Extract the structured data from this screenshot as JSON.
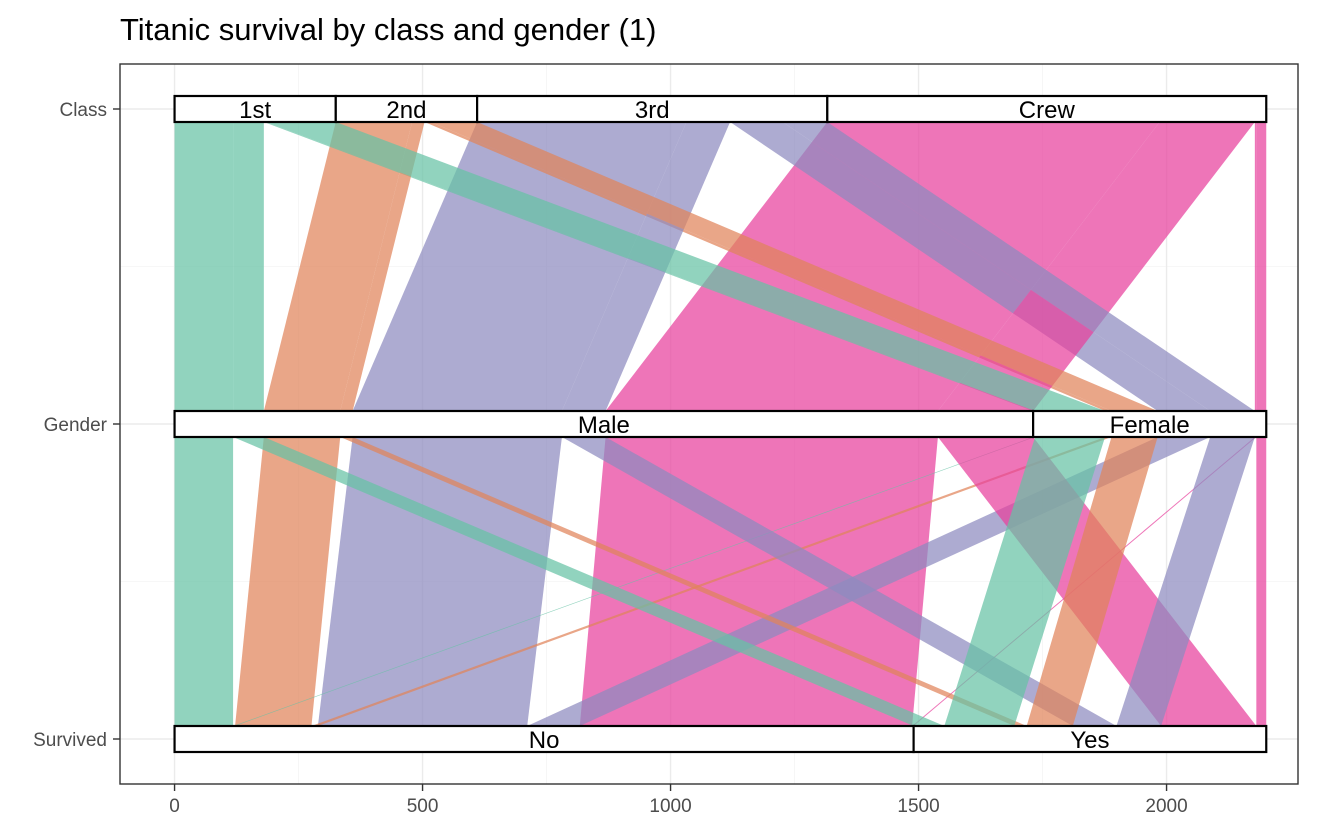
{
  "title": "Titanic survival by class and gender (1)",
  "colors": {
    "1st": "#66C2A5",
    "2nd": "#E0835A",
    "3rd": "#8D8BBF",
    "Crew": "#E7409C"
  },
  "chart_data": {
    "type": "alluvial",
    "title": "Titanic survival by class and gender (1)",
    "xlabel": "",
    "ylabel": "",
    "axes": [
      "Class",
      "Gender",
      "Survived"
    ],
    "x_range": [
      -110,
      2265
    ],
    "x_ticks": [
      0,
      500,
      1000,
      1500,
      2000
    ],
    "grid": true,
    "legend": "none",
    "strata": {
      "Class": [
        "1st",
        "2nd",
        "3rd",
        "Crew"
      ],
      "Gender": [
        "Male",
        "Female"
      ],
      "Survived": [
        "No",
        "Yes"
      ]
    },
    "flows": [
      {
        "Class": "1st",
        "Gender": "Male",
        "Survived": "No",
        "n": 118
      },
      {
        "Class": "2nd",
        "Gender": "Male",
        "Survived": "No",
        "n": 154
      },
      {
        "Class": "3rd",
        "Gender": "Male",
        "Survived": "No",
        "n": 422
      },
      {
        "Class": "Crew",
        "Gender": "Male",
        "Survived": "No",
        "n": 670
      },
      {
        "Class": "1st",
        "Gender": "Female",
        "Survived": "No",
        "n": 4
      },
      {
        "Class": "2nd",
        "Gender": "Female",
        "Survived": "No",
        "n": 13
      },
      {
        "Class": "3rd",
        "Gender": "Female",
        "Survived": "No",
        "n": 106
      },
      {
        "Class": "Crew",
        "Gender": "Female",
        "Survived": "No",
        "n": 3
      },
      {
        "Class": "1st",
        "Gender": "Male",
        "Survived": "Yes",
        "n": 62
      },
      {
        "Class": "2nd",
        "Gender": "Male",
        "Survived": "Yes",
        "n": 25
      },
      {
        "Class": "3rd",
        "Gender": "Male",
        "Survived": "Yes",
        "n": 88
      },
      {
        "Class": "Crew",
        "Gender": "Male",
        "Survived": "Yes",
        "n": 192
      },
      {
        "Class": "1st",
        "Gender": "Female",
        "Survived": "Yes",
        "n": 141
      },
      {
        "Class": "2nd",
        "Gender": "Female",
        "Survived": "Yes",
        "n": 93
      },
      {
        "Class": "3rd",
        "Gender": "Female",
        "Survived": "Yes",
        "n": 90
      },
      {
        "Class": "Crew",
        "Gender": "Female",
        "Survived": "Yes",
        "n": 20
      }
    ]
  }
}
